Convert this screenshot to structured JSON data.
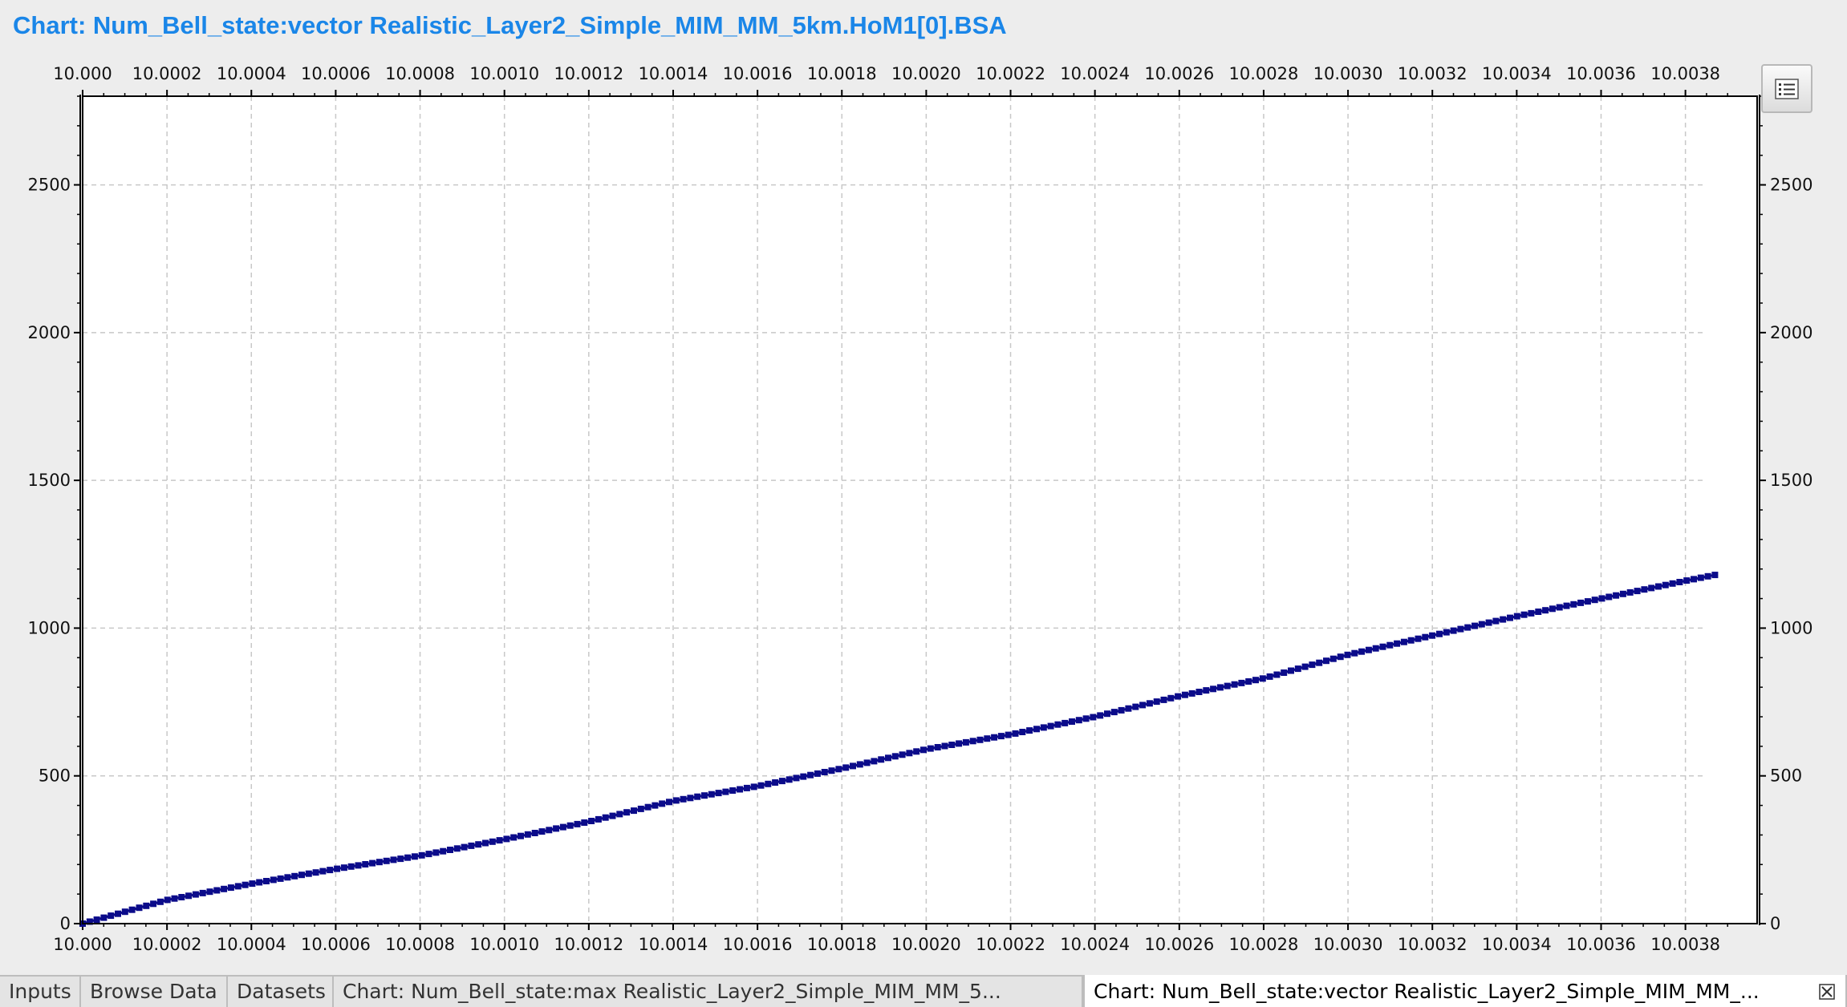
{
  "window": {
    "title": "Chart: Num_Bell_state:vector Realistic_Layer2_Simple_MIM_MM_5km.HoM1[0].BSA"
  },
  "toolbar": {
    "legend_icon": "list-icon"
  },
  "tabs": [
    {
      "label": "Inputs",
      "active": false
    },
    {
      "label": "Browse Data",
      "active": false
    },
    {
      "label": "Datasets",
      "active": false
    },
    {
      "label": "Chart: Num_Bell_state:max Realistic_Layer2_Simple_MIM_MM_5...",
      "active": false
    },
    {
      "label": "Chart: Num_Bell_state:vector Realistic_Layer2_Simple_MIM_MM_...",
      "active": true
    }
  ],
  "tab_close_icon": "close-icon",
  "colors": {
    "title": "#1a86e8",
    "series": "#0b0b8a",
    "grid": "#c8c8c8"
  },
  "chart_data": {
    "type": "scatter",
    "title": "Chart: Num_Bell_state:vector Realistic_Layer2_Simple_MIM_MM_5km.HoM1[0].BSA",
    "xlabel": "",
    "ylabel": "",
    "xlim": [
      10.0,
      10.00397
    ],
    "ylim": [
      0,
      2800
    ],
    "x_ticks": [
      "10.000",
      "10.0002",
      "10.0004",
      "10.0006",
      "10.0008",
      "10.0010",
      "10.0012",
      "10.0014",
      "10.0016",
      "10.0018",
      "10.0020",
      "10.0022",
      "10.0024",
      "10.0026",
      "10.0028",
      "10.0030",
      "10.0032",
      "10.0034",
      "10.0036",
      "10.0038"
    ],
    "y_ticks": [
      "0",
      "500",
      "1000",
      "1500",
      "2000",
      "2500"
    ],
    "grid": true,
    "legend": "none",
    "series": [
      {
        "start": [
          10.0,
          0
        ],
        "end": [
          10.00387,
          1180
        ],
        "point_count": 232,
        "marker": "square",
        "anchors": [
          [
            10.0,
            0
          ],
          [
            10.0002,
            80
          ],
          [
            10.0004,
            135
          ],
          [
            10.0006,
            185
          ],
          [
            10.0008,
            230
          ],
          [
            10.001,
            285
          ],
          [
            10.0012,
            345
          ],
          [
            10.0014,
            415
          ],
          [
            10.0016,
            465
          ],
          [
            10.0018,
            525
          ],
          [
            10.002,
            590
          ],
          [
            10.0022,
            640
          ],
          [
            10.0024,
            700
          ],
          [
            10.0026,
            770
          ],
          [
            10.0028,
            830
          ],
          [
            10.003,
            910
          ],
          [
            10.0032,
            975
          ],
          [
            10.0034,
            1040
          ],
          [
            10.0036,
            1100
          ],
          [
            10.0038,
            1160
          ],
          [
            10.00387,
            1180
          ]
        ]
      }
    ]
  }
}
